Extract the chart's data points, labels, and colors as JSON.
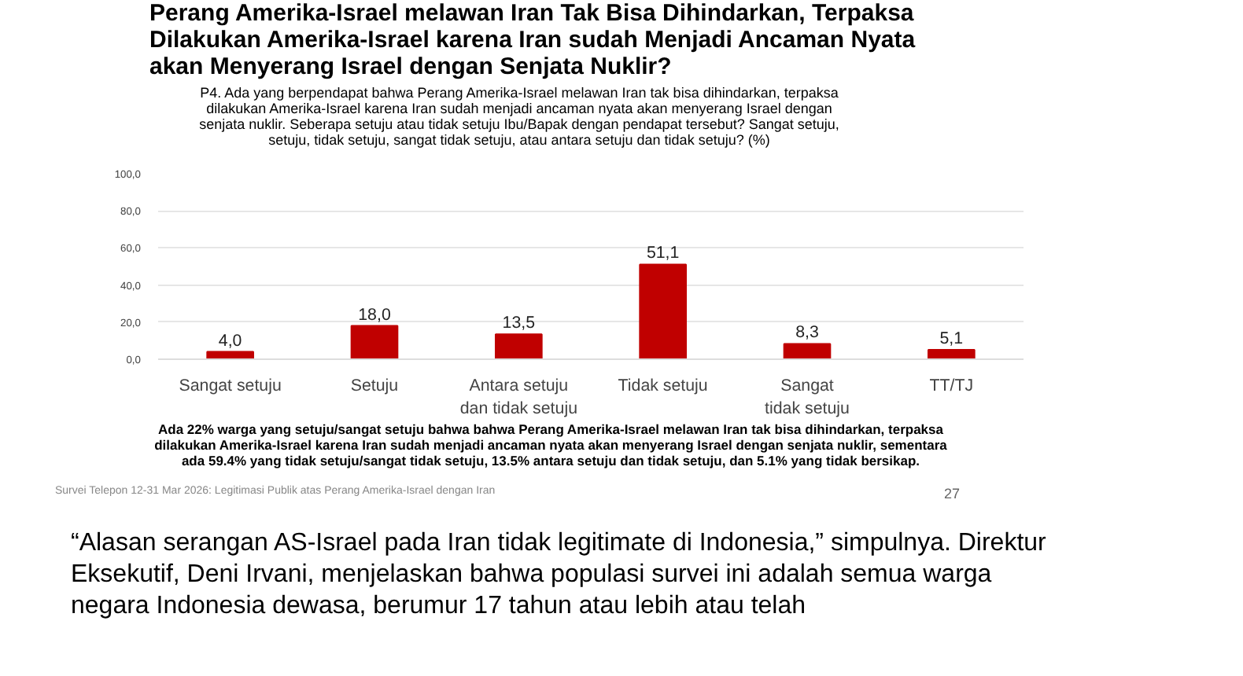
{
  "chart_data": {
    "type": "bar",
    "title": "Perang Amerika-Israel melawan Iran Tak Bisa Dihindarkan, Terpaksa Dilakukan Amerika-Israel karena Iran sudah Menjadi Ancaman Nyata akan Menyerang Israel dengan Senjata Nuklir?",
    "subtitle": "P4. Ada yang berpendapat bahwa Perang Amerika-Israel melawan Iran tak bisa dihindarkan, terpaksa dilakukan Amerika-Israel karena Iran sudah menjadi ancaman nyata akan menyerang Israel dengan senjata nuklir. Seberapa setuju atau tidak setuju Ibu/Bapak dengan pendapat tersebut? Sangat setuju, setuju, tidak setuju, sangat tidak setuju, atau antara setuju dan tidak setuju? (%)",
    "categories": [
      "Sangat setuju",
      "Setuju",
      "Antara setuju dan tidak setuju",
      "Tidak setuju",
      "Sangat tidak setuju",
      "TT/TJ"
    ],
    "values": [
      4.0,
      18.0,
      13.5,
      51.1,
      8.3,
      5.1
    ],
    "value_labels": [
      "4,0",
      "18,0",
      "13,5",
      "51,1",
      "8,3",
      "5,1"
    ],
    "color": "#c00000",
    "ylim": [
      0,
      100
    ],
    "yticks": [
      {
        "value": 0,
        "label": "0,0"
      },
      {
        "value": 20,
        "label": "20,0"
      },
      {
        "value": 40,
        "label": "40,0"
      },
      {
        "value": 60,
        "label": "60,0"
      },
      {
        "value": 80,
        "label": "80,0"
      },
      {
        "value": 100,
        "label": "100,0"
      }
    ],
    "grid": "y",
    "annotations": [
      "Ada 22% warga yang setuju/sangat setuju bahwa bahwa Perang Amerika-Israel melawan Iran tak bisa dihindarkan, terpaksa dilakukan Amerika-Israel karena Iran sudah menjadi ancaman nyata akan menyerang Israel dengan senjata nuklir, sementara ada 59.4% yang tidak setuju/sangat tidak setuju, 13.5% antara setuju dan tidak setuju, dan 5.1% yang tidak bersikap.",
      "Survei Telepon 12-31 Mar 2026: Legitimasi Publik atas Perang Amerika-Israel dengan Iran",
      "27",
      "“Alasan serangan AS-Israel pada Iran tidak legitimate di Indonesia,” simpulnya. Direktur Eksekutif, Deni Irvani, menjelaskan bahwa populasi survei ini adalah semua warga negara Indonesia dewasa, berumur 17 tahun atau lebih atau telah"
    ]
  }
}
